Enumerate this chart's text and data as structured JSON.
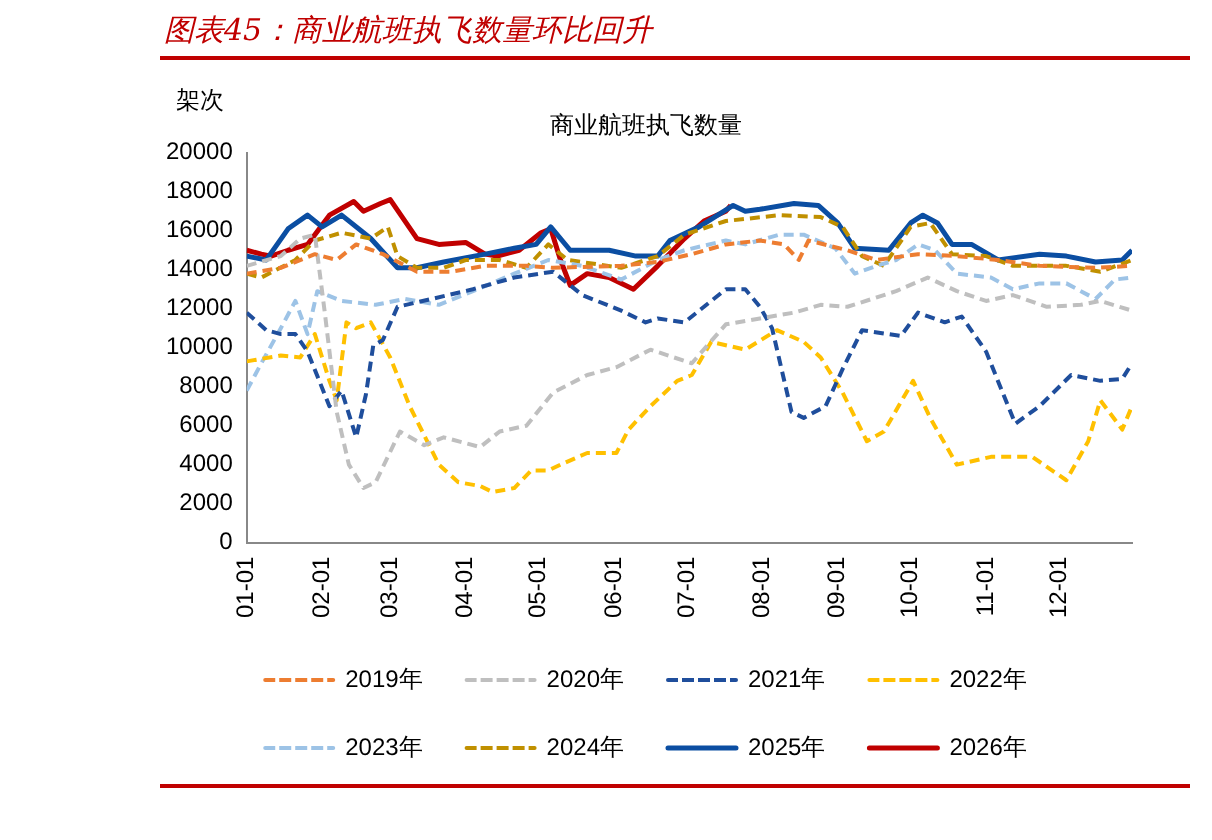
{
  "chart_data": {
    "type": "line",
    "title": "图表45：商业航班执飞数量环比回升",
    "subtitle": "商业航班执飞数量",
    "ylabel": "架次",
    "xlim": [
      "--01-01",
      "--12-31"
    ],
    "xticks": [
      {
        "value": "--01-01",
        "label": "01-01"
      },
      {
        "value": "--02-01",
        "label": "02-01"
      },
      {
        "value": "--03-01",
        "label": "03-01"
      },
      {
        "value": "--04-01",
        "label": "04-01"
      },
      {
        "value": "--05-01",
        "label": "05-01"
      },
      {
        "value": "--06-01",
        "label": "06-01"
      },
      {
        "value": "--07-01",
        "label": "07-01"
      },
      {
        "value": "--08-01",
        "label": "08-01"
      },
      {
        "value": "--09-01",
        "label": "09-01"
      },
      {
        "value": "--10-01",
        "label": "10-01"
      },
      {
        "value": "--11-01",
        "label": "11-01"
      },
      {
        "value": "--12-01",
        "label": "12-01"
      }
    ],
    "ylim": [
      0,
      20000
    ],
    "yticks": [
      0,
      2000,
      4000,
      6000,
      8000,
      10000,
      12000,
      14000,
      16000,
      18000,
      20000
    ],
    "grid": false,
    "legend": "bottom",
    "marker": "none",
    "series": [
      {
        "name": "2019年",
        "color": "#ed7d31",
        "line_style": "dashed",
        "x": [
          "--01-01",
          "--01-15",
          "--01-29",
          "--02-07",
          "--02-15",
          "--02-26",
          "--03-12",
          "--03-26",
          "--04-09",
          "--04-26",
          "--05-07",
          "--06-04",
          "--06-19",
          "--07-03",
          "--07-17",
          "--07-31",
          "--08-10",
          "--08-16",
          "--08-20",
          "--09-05",
          "--09-17",
          "--10-04",
          "--10-20",
          "--11-06",
          "--11-23",
          "--12-16",
          "--12-31"
        ],
        "values": [
          13800,
          14100,
          14800,
          14500,
          15300,
          14800,
          13900,
          13900,
          14200,
          14200,
          14100,
          14200,
          14400,
          14800,
          15300,
          15500,
          15300,
          14500,
          15500,
          15000,
          14500,
          14800,
          14700,
          14500,
          14200,
          14100,
          14200
        ]
      },
      {
        "name": "2020年",
        "color": "#bfbfbf",
        "line_style": "dashed",
        "x": [
          "--01-01",
          "--01-15",
          "--01-23",
          "--01-29",
          "--02-02",
          "--02-07",
          "--02-12",
          "--02-18",
          "--02-23",
          "--03-05",
          "--03-15",
          "--03-23",
          "--04-07",
          "--04-15",
          "--04-26",
          "--05-07",
          "--05-21",
          "--06-02",
          "--06-16",
          "--07-03",
          "--07-17",
          "--07-31",
          "--08-14",
          "--08-25",
          "--09-05",
          "--09-25",
          "--10-08",
          "--10-20",
          "--11-01",
          "--11-12",
          "--11-26",
          "--12-10",
          "--12-18",
          "--12-31"
        ],
        "values": [
          14200,
          14700,
          15600,
          15800,
          11900,
          6700,
          4000,
          2800,
          3100,
          5700,
          5000,
          5400,
          4900,
          5700,
          6000,
          7700,
          8600,
          9000,
          9900,
          9200,
          11200,
          11500,
          11800,
          12200,
          12100,
          12900,
          13600,
          12900,
          12400,
          12700,
          12100,
          12200,
          12400,
          11900
        ]
      },
      {
        "name": "2021年",
        "color": "#1f4e9c",
        "line_style": "dashed",
        "x": [
          "--01-01",
          "--01-09",
          "--01-15",
          "--01-21",
          "--01-26",
          "--02-04",
          "--02-09",
          "--02-15",
          "--02-19",
          "--02-22",
          "--02-26",
          "--03-04",
          "--03-18",
          "--04-04",
          "--04-21",
          "--05-07",
          "--05-19",
          "--06-04",
          "--06-14",
          "--06-19",
          "--06-30",
          "--07-17",
          "--07-25",
          "--07-31",
          "--08-05",
          "--08-13",
          "--08-18",
          "--08-27",
          "--09-03",
          "--09-11",
          "--09-27",
          "--10-04",
          "--10-15",
          "--10-22",
          "--11-01",
          "--11-13",
          "--11-23",
          "--12-06",
          "--12-18",
          "--12-27",
          "--12-31"
        ],
        "values": [
          11800,
          10900,
          10700,
          10700,
          9800,
          7000,
          7800,
          5400,
          7600,
          10100,
          10400,
          12100,
          12500,
          13000,
          13600,
          13900,
          12700,
          11900,
          11300,
          11500,
          11300,
          13000,
          13000,
          12100,
          11000,
          6700,
          6400,
          7000,
          8900,
          10900,
          10600,
          11800,
          11300,
          11600,
          9800,
          6100,
          7000,
          8600,
          8300,
          8400,
          9200
        ]
      },
      {
        "name": "2022年",
        "color": "#ffc000",
        "line_style": "dashed",
        "x": [
          "--01-01",
          "--01-15",
          "--01-23",
          "--01-29",
          "--02-04",
          "--02-07",
          "--02-11",
          "--02-15",
          "--02-21",
          "--03-01",
          "--03-09",
          "--03-21",
          "--03-29",
          "--04-07",
          "--04-12",
          "--04-21",
          "--04-28",
          "--05-05",
          "--05-10",
          "--05-21",
          "--06-02",
          "--06-07",
          "--06-16",
          "--06-27",
          "--07-03",
          "--07-11",
          "--07-25",
          "--08-07",
          "--08-18",
          "--08-25",
          "--09-03",
          "--09-13",
          "--09-20",
          "--10-02",
          "--10-09",
          "--10-20",
          "--11-03",
          "--11-20",
          "--12-04",
          "--12-13",
          "--12-18",
          "--12-27",
          "--12-31"
        ],
        "values": [
          9300,
          9600,
          9500,
          10700,
          8300,
          7300,
          11300,
          11000,
          11300,
          9500,
          7000,
          4000,
          3100,
          2900,
          2600,
          2800,
          3700,
          3700,
          4000,
          4600,
          4600,
          5800,
          7000,
          8300,
          8600,
          10300,
          9900,
          10900,
          10300,
          9500,
          7700,
          5200,
          5700,
          8300,
          6400,
          4000,
          4400,
          4400,
          3200,
          5200,
          7300,
          5800,
          7000
        ]
      },
      {
        "name": "2023年",
        "color": "#9dc3e6",
        "line_style": "dashed",
        "x": [
          "--01-01",
          "--01-07",
          "--01-15",
          "--01-21",
          "--01-26",
          "--01-30",
          "--02-09",
          "--02-23",
          "--03-07",
          "--03-21",
          "--04-04",
          "--04-21",
          "--05-05",
          "--05-19",
          "--06-04",
          "--06-19",
          "--06-30",
          "--07-17",
          "--07-25",
          "--08-08",
          "--08-18",
          "--08-31",
          "--09-08",
          "--09-17",
          "--09-25",
          "--10-04",
          "--10-11",
          "--10-20",
          "--11-03",
          "--11-12",
          "--11-23",
          "--12-04",
          "--12-16",
          "--12-24",
          "--12-31"
        ],
        "values": [
          7800,
          9200,
          11000,
          12400,
          10700,
          12900,
          12400,
          12200,
          12500,
          12200,
          12900,
          13800,
          14500,
          14200,
          13500,
          14500,
          15000,
          15500,
          15300,
          15800,
          15800,
          15100,
          13800,
          14200,
          14500,
          15300,
          15000,
          13800,
          13600,
          13000,
          13300,
          13300,
          12500,
          13500,
          13600
        ]
      },
      {
        "name": "2024年",
        "color": "#c09000",
        "line_style": "dashed",
        "x": [
          "--01-01",
          "--01-07",
          "--01-21",
          "--01-29",
          "--02-09",
          "--02-21",
          "--02-28",
          "--03-04",
          "--03-12",
          "--03-23",
          "--04-01",
          "--04-15",
          "--04-26",
          "--05-05",
          "--05-13",
          "--06-04",
          "--06-19",
          "--06-30",
          "--07-17",
          "--08-08",
          "--08-25",
          "--09-03",
          "--09-11",
          "--09-20",
          "--10-01",
          "--10-09",
          "--10-18",
          "--11-01",
          "--11-12",
          "--12-04",
          "--12-18",
          "--12-31"
        ],
        "values": [
          13800,
          13600,
          14500,
          15500,
          15900,
          15600,
          16200,
          14700,
          14100,
          14100,
          14500,
          14500,
          14100,
          15300,
          14500,
          14100,
          14700,
          15800,
          16500,
          16800,
          16700,
          16200,
          14700,
          14200,
          16200,
          16400,
          14800,
          14700,
          14200,
          14200,
          13900,
          14500
        ]
      },
      {
        "name": "2025年",
        "color": "#0b4ea2",
        "line_style": "solid",
        "x": [
          "--01-01",
          "--01-09",
          "--01-18",
          "--01-26",
          "--02-01",
          "--02-09",
          "--02-21",
          "--03-04",
          "--03-12",
          "--03-23",
          "--04-09",
          "--04-21",
          "--04-30",
          "--05-06",
          "--05-14",
          "--05-30",
          "--06-10",
          "--06-19",
          "--06-24",
          "--07-06",
          "--07-20",
          "--07-25",
          "--07-31",
          "--08-14",
          "--08-24",
          "--09-01",
          "--09-08",
          "--09-22",
          "--10-01",
          "--10-06",
          "--10-12",
          "--10-18",
          "--10-26",
          "--11-06",
          "--11-23",
          "--12-04",
          "--12-16",
          "--12-27",
          "--12-31"
        ],
        "values": [
          14700,
          14500,
          16100,
          16800,
          16200,
          16800,
          15600,
          14100,
          14100,
          14400,
          14800,
          15100,
          15300,
          16200,
          15000,
          15000,
          14700,
          14700,
          15500,
          16200,
          17300,
          17000,
          17100,
          17400,
          17300,
          16400,
          15100,
          15000,
          16400,
          16800,
          16400,
          15300,
          15300,
          14500,
          14800,
          14700,
          14400,
          14500,
          15000
        ]
      },
      {
        "name": "2026年",
        "color": "#c00000",
        "line_style": "solid",
        "x": [
          "--01-01",
          "--01-07",
          "--01-11",
          "--01-18",
          "--01-26",
          "--02-04",
          "--02-14",
          "--02-18",
          "--02-25",
          "--03-01",
          "--03-12",
          "--03-21",
          "--04-01",
          "--04-09",
          "--04-14",
          "--04-23",
          "--05-02",
          "--05-06",
          "--05-10",
          "--05-14",
          "--05-21",
          "--05-30",
          "--06-09",
          "--06-19",
          "--06-30",
          "--07-08",
          "--07-17",
          "--07-19"
        ],
        "values": [
          15000,
          14800,
          14700,
          15000,
          15300,
          16800,
          17500,
          17000,
          17400,
          17600,
          15600,
          15300,
          15400,
          14800,
          14700,
          15000,
          15900,
          16100,
          14500,
          13200,
          13800,
          13600,
          13000,
          14200,
          15600,
          16500,
          17000,
          17300
        ]
      }
    ]
  }
}
